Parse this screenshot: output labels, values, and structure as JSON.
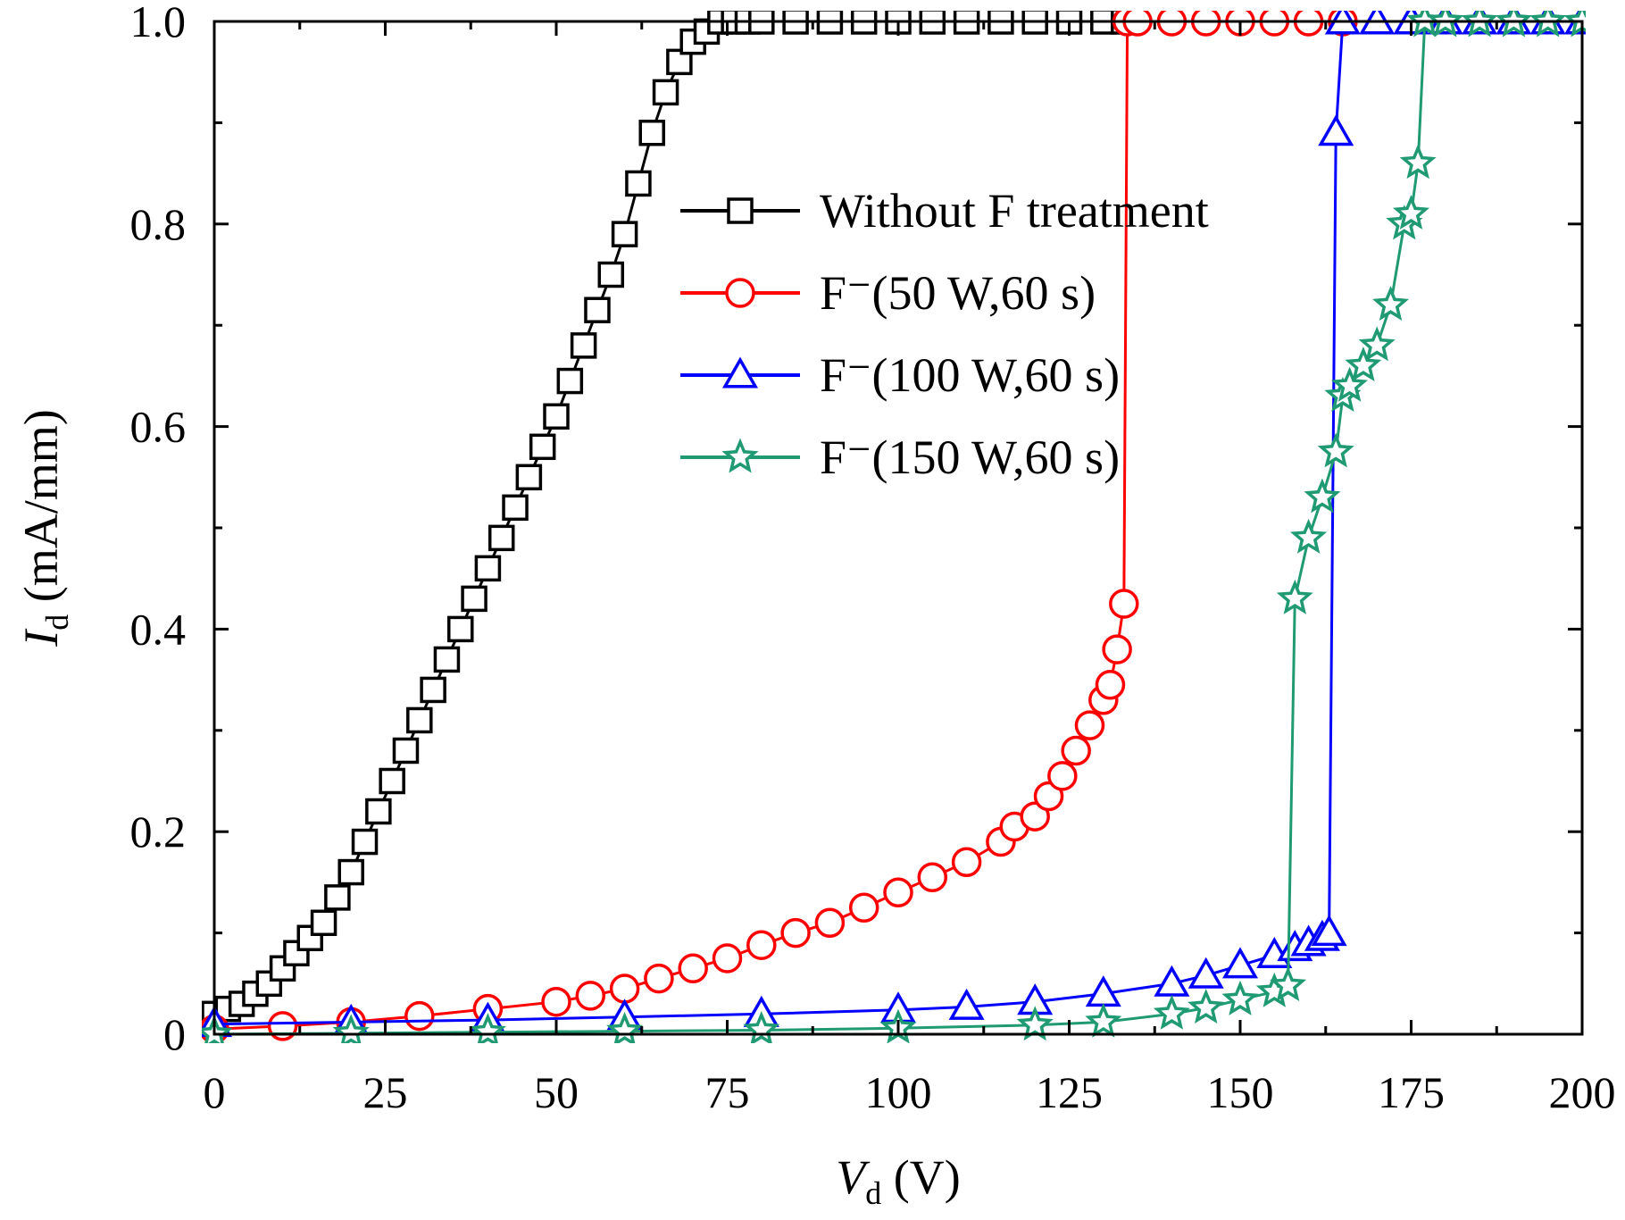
{
  "chart_data": {
    "type": "line",
    "xlabel": {
      "main": "V",
      "sub": "d",
      "unit": " (V)"
    },
    "ylabel": {
      "main": "I",
      "sub": "d",
      "unit": " (mA/mm)"
    },
    "xlim": [
      0,
      200
    ],
    "ylim": [
      0,
      1.0
    ],
    "xticks": [
      0,
      25,
      50,
      75,
      100,
      125,
      150,
      175,
      200
    ],
    "xtick_labels": [
      "0",
      "25",
      "50",
      "75",
      "100",
      "125",
      "150",
      "175",
      "200"
    ],
    "yticks": [
      0,
      0.2,
      0.4,
      0.6,
      0.8,
      1.0
    ],
    "ytick_labels": [
      "0",
      "0.2",
      "0.4",
      "0.6",
      "0.8",
      "1.0"
    ],
    "grid": false,
    "legend_position": "upper-center",
    "series": [
      {
        "name": "Without F treatment",
        "color": "#000000",
        "marker": "square",
        "x": [
          0,
          2,
          4,
          6,
          8,
          10,
          12,
          14,
          16,
          18,
          20,
          22,
          24,
          26,
          28,
          30,
          32,
          34,
          36,
          38,
          40,
          42,
          44,
          46,
          48,
          50,
          52,
          54,
          56,
          58,
          60,
          62,
          64,
          66,
          68,
          70,
          72,
          74,
          76,
          78,
          80,
          85,
          90,
          95,
          100,
          105,
          110,
          115,
          120,
          125,
          130,
          133
        ],
        "y": [
          0.02,
          0.025,
          0.03,
          0.04,
          0.05,
          0.065,
          0.08,
          0.095,
          0.11,
          0.135,
          0.16,
          0.19,
          0.22,
          0.25,
          0.28,
          0.31,
          0.34,
          0.37,
          0.4,
          0.43,
          0.46,
          0.49,
          0.52,
          0.55,
          0.58,
          0.61,
          0.645,
          0.68,
          0.715,
          0.75,
          0.79,
          0.84,
          0.89,
          0.93,
          0.96,
          0.98,
          0.99,
          1.0,
          1.0,
          1.0,
          1.0,
          1.0,
          1.0,
          1.0,
          1.0,
          1.0,
          1.0,
          1.0,
          1.0,
          1.0,
          1.0,
          1.0
        ]
      },
      {
        "name": "F⁻(50 W,60 s)",
        "color": "#ff0000",
        "marker": "circle",
        "x": [
          0,
          10,
          20,
          30,
          40,
          50,
          55,
          60,
          65,
          70,
          75,
          80,
          85,
          90,
          95,
          100,
          105,
          110,
          115,
          117,
          120,
          122,
          124,
          126,
          128,
          130,
          131,
          132,
          133,
          133.5,
          135,
          140,
          145,
          150,
          155,
          160,
          165
        ],
        "y": [
          0.005,
          0.008,
          0.012,
          0.018,
          0.025,
          0.032,
          0.038,
          0.045,
          0.055,
          0.065,
          0.075,
          0.088,
          0.1,
          0.11,
          0.125,
          0.14,
          0.155,
          0.17,
          0.19,
          0.205,
          0.215,
          0.235,
          0.255,
          0.28,
          0.305,
          0.33,
          0.345,
          0.38,
          0.425,
          1.0,
          1.0,
          1.0,
          1.0,
          1.0,
          1.0,
          1.0,
          1.0
        ]
      },
      {
        "name": "F⁻(100 W,60 s)",
        "color": "#0000ff",
        "marker": "triangle",
        "x": [
          0,
          20,
          40,
          60,
          80,
          100,
          110,
          120,
          130,
          140,
          145,
          150,
          155,
          158,
          160,
          162,
          163,
          164,
          165,
          170,
          175,
          180,
          185,
          190,
          195,
          200
        ],
        "y": [
          0.01,
          0.012,
          0.014,
          0.017,
          0.02,
          0.024,
          0.027,
          0.032,
          0.04,
          0.05,
          0.058,
          0.068,
          0.078,
          0.085,
          0.09,
          0.095,
          0.1,
          0.89,
          1.0,
          1.0,
          1.0,
          1.0,
          1.0,
          1.0,
          1.0,
          1.0
        ]
      },
      {
        "name": "F⁻(150 W,60 s)",
        "color": "#1f9a72",
        "marker": "star",
        "x": [
          0,
          20,
          40,
          60,
          80,
          100,
          120,
          130,
          140,
          145,
          150,
          155,
          157,
          158,
          160,
          162,
          164,
          165,
          166,
          168,
          170,
          172,
          174,
          175,
          176,
          177,
          180,
          185,
          190,
          195,
          200
        ],
        "y": [
          0.0,
          0.001,
          0.002,
          0.003,
          0.004,
          0.006,
          0.009,
          0.012,
          0.02,
          0.026,
          0.034,
          0.042,
          0.048,
          0.43,
          0.49,
          0.53,
          0.575,
          0.63,
          0.64,
          0.66,
          0.68,
          0.72,
          0.8,
          0.81,
          0.86,
          1.0,
          1.0,
          1.0,
          1.0,
          1.0,
          1.0
        ]
      }
    ]
  }
}
